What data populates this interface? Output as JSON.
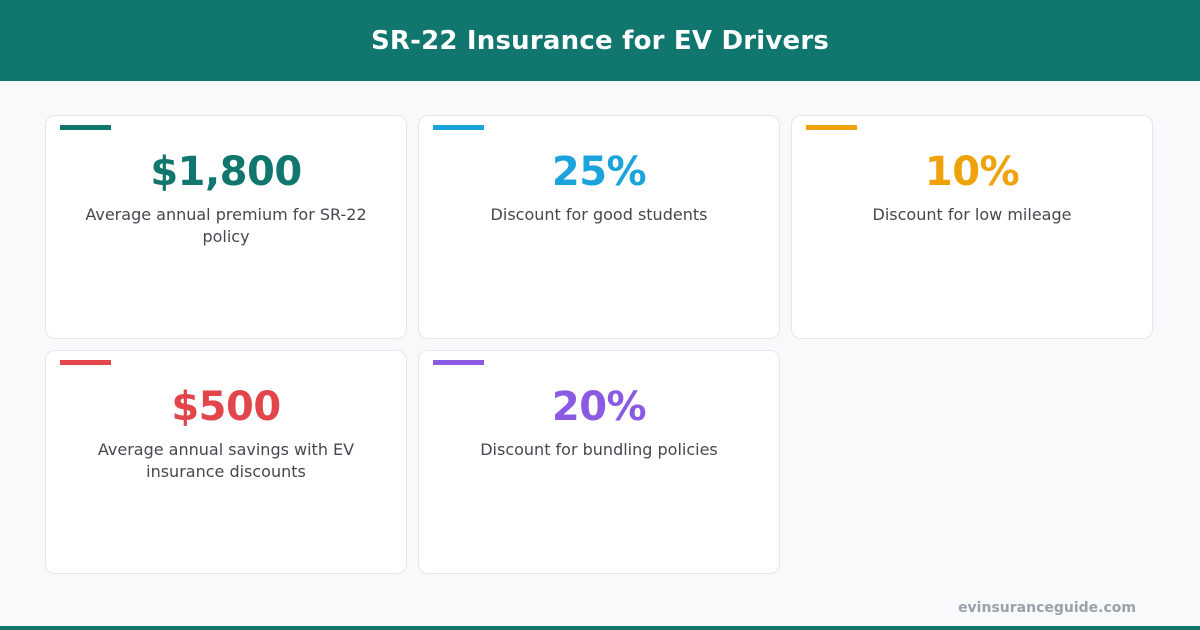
{
  "header": {
    "title": "SR-22 Insurance for EV Drivers",
    "color": "#10766e"
  },
  "cards": [
    {
      "value": "$1,800",
      "label": "Average annual premium for SR-22 policy",
      "color": "#10766e"
    },
    {
      "value": "25%",
      "label": "Discount for good students",
      "color": "#1ba3dc"
    },
    {
      "value": "10%",
      "label": "Discount for low mileage",
      "color": "#f0a20a"
    },
    {
      "value": "$500",
      "label": "Average annual savings with EV insurance discounts",
      "color": "#e2454a"
    },
    {
      "value": "20%",
      "label": "Discount for bundling policies",
      "color": "#8a5ae3"
    }
  ],
  "footer": {
    "domain": "evinsuranceguide.com"
  }
}
